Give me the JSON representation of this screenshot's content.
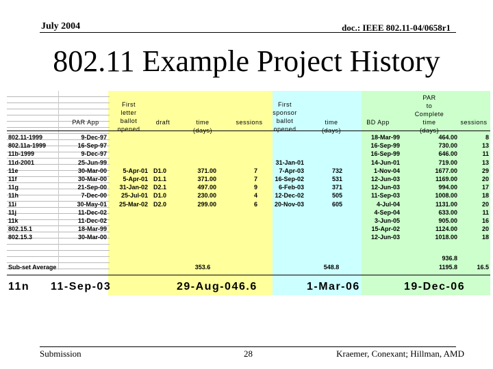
{
  "header": {
    "date": "July 2004",
    "doc": "doc.: IEEE 802.11-04/0658r1"
  },
  "title": "802.11 Example Project History",
  "footer": {
    "left": "Submission",
    "page": "28",
    "authors": "Kraemer, Conexant; Hillman, AMD"
  },
  "table": {
    "headers": {
      "par_app": "PAR App",
      "first_letter": [
        "First",
        "letter",
        "ballot",
        "opened"
      ],
      "draft": "draft",
      "time1": [
        "time",
        "(days)"
      ],
      "sessions1": "sessions",
      "first_sponsor": [
        "First",
        "sponsor",
        "ballot",
        "opened"
      ],
      "time2": [
        "time",
        "(days)"
      ],
      "bd_app": "BD App",
      "par_complete": [
        "PAR",
        "to",
        "Complete",
        "time",
        "(days)"
      ],
      "sessions2": "sessions"
    },
    "rows": [
      {
        "name": "802.11-1999",
        "par": "9-Dec-97",
        "letter": "",
        "draft": "",
        "time1": "",
        "sess1": "",
        "sponsor": "",
        "time2": "",
        "bd": "18-Mar-99",
        "ptc": "464.00",
        "sess2": "8"
      },
      {
        "name": "802.11a-1999",
        "par": "16-Sep-97",
        "letter": "",
        "draft": "",
        "time1": "",
        "sess1": "",
        "sponsor": "",
        "time2": "",
        "bd": "16-Sep-99",
        "ptc": "730.00",
        "sess2": "13"
      },
      {
        "name": "11b-1999",
        "par": "9-Dec-97",
        "letter": "",
        "draft": "",
        "time1": "",
        "sess1": "",
        "sponsor": "",
        "time2": "",
        "bd": "16-Sep-99",
        "ptc": "646.00",
        "sess2": "11"
      },
      {
        "name": "11d-2001",
        "par": "25-Jun-99",
        "letter": "",
        "draft": "",
        "time1": "",
        "sess1": "",
        "sponsor": "31-Jan-01",
        "time2": "",
        "bd": "14-Jun-01",
        "ptc": "719.00",
        "sess2": "13"
      },
      {
        "name": "11e",
        "par": "30-Mar-00",
        "letter": "5-Apr-01",
        "draft": "D1.0",
        "time1": "371.00",
        "sess1": "7",
        "sponsor": "7-Apr-03",
        "time2": "732",
        "bd": "1-Nov-04",
        "ptc": "1677.00",
        "sess2": "29"
      },
      {
        "name": "11f",
        "par": "30-Mar-00",
        "letter": "5-Apr-01",
        "draft": "D1.1",
        "time1": "371.00",
        "sess1": "7",
        "sponsor": "16-Sep-02",
        "time2": "531",
        "bd": "12-Jun-03",
        "ptc": "1169.00",
        "sess2": "20"
      },
      {
        "name": "11g",
        "par": "21-Sep-00",
        "letter": "31-Jan-02",
        "draft": "D2.1",
        "time1": "497.00",
        "sess1": "9",
        "sponsor": "6-Feb-03",
        "time2": "371",
        "bd": "12-Jun-03",
        "ptc": "994.00",
        "sess2": "17"
      },
      {
        "name": "11h",
        "par": "7-Dec-00",
        "letter": "25-Jul-01",
        "draft": "D1.0",
        "time1": "230.00",
        "sess1": "4",
        "sponsor": "12-Dec-02",
        "time2": "505",
        "bd": "11-Sep-03",
        "ptc": "1008.00",
        "sess2": "18"
      },
      {
        "name": "11i",
        "par": "30-May-01",
        "letter": "25-Mar-02",
        "draft": "D2.0",
        "time1": "299.00",
        "sess1": "6",
        "sponsor": "20-Nov-03",
        "time2": "605",
        "bd": "4-Jul-04",
        "ptc": "1131.00",
        "sess2": "20"
      },
      {
        "name": "11j",
        "par": "11-Dec-02",
        "letter": "",
        "draft": "",
        "time1": "",
        "sess1": "",
        "sponsor": "",
        "time2": "",
        "bd": "4-Sep-04",
        "ptc": "633.00",
        "sess2": "11"
      },
      {
        "name": "11k",
        "par": "11-Dec-02",
        "letter": "",
        "draft": "",
        "time1": "",
        "sess1": "",
        "sponsor": "",
        "time2": "",
        "bd": "3-Jun-05",
        "ptc": "905.00",
        "sess2": "16"
      },
      {
        "name": "802.15.1",
        "par": "18-Mar-99",
        "letter": "",
        "draft": "",
        "time1": "",
        "sess1": "",
        "sponsor": "",
        "time2": "",
        "bd": "15-Apr-02",
        "ptc": "1124.00",
        "sess2": "20"
      },
      {
        "name": "802.15.3",
        "par": "30-Mar-00",
        "letter": "",
        "draft": "",
        "time1": "",
        "sess1": "",
        "sponsor": "",
        "time2": "",
        "bd": "12-Jun-03",
        "ptc": "1018.00",
        "sess2": "18"
      }
    ],
    "average": {
      "label": "Sub-set Average",
      "time1": "353.6",
      "time2": "548.8",
      "ptc_a": "936.8",
      "ptc_b": "1195.8",
      "sess2": "16.5"
    },
    "projection": {
      "name": "11n",
      "par": "11-Sep-03",
      "letter": "29-Aug-04",
      "sess1": "6.6",
      "sponsor": "1-Mar-06",
      "bd": "19-Dec-06"
    }
  }
}
